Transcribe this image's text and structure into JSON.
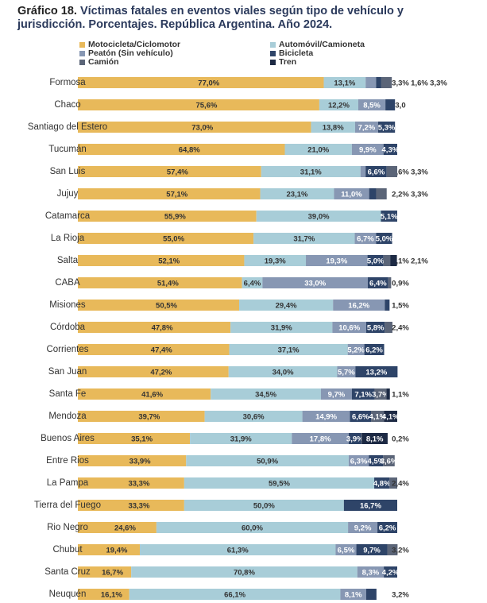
{
  "chart_data": {
    "type": "stacked-bar-horizontal",
    "title_label": "Gráfico 18.",
    "title": "Víctimas fatales en eventos viales según tipo de vehículo y jurisdicción. Porcentajes. República Argentina. Año 2024.",
    "categories": [
      "Formosa",
      "Chaco",
      "Santiago del Estero",
      "Tucumán",
      "San Luis",
      "Jujuy",
      "Catamarca",
      "La Rioja",
      "Salta",
      "CABA",
      "Misiones",
      "Córdoba",
      "Corrientes",
      "San Juan",
      "Santa Fe",
      "Mendoza",
      "Buenos Aires",
      "Entre Rios",
      "La Pampa",
      "Tierra del Fuego",
      "Rio Negro",
      "Chubut",
      "Santa Cruz",
      "Neuquén"
    ],
    "xlim": [
      0,
      100
    ],
    "series": [
      {
        "name": "Motocicleta/Ciclomotor",
        "color": "#e8b95a",
        "values": [
          77.0,
          75.6,
          73.0,
          64.8,
          57.4,
          57.1,
          55.9,
          55.0,
          52.1,
          51.4,
          50.5,
          47.8,
          47.4,
          47.2,
          41.6,
          39.7,
          35.1,
          33.9,
          33.3,
          33.3,
          24.6,
          19.4,
          16.7,
          16.1
        ],
        "value_labels": [
          "77,0%",
          "75,6%",
          "73,0%",
          "64,8%",
          "57,4%",
          "57,1%",
          "55,9%",
          "55,0%",
          "52,1%",
          "51,4%",
          "50,5%",
          "47,8%",
          "47,4%",
          "47,2%",
          "41,6%",
          "39,7%",
          "35,1%",
          "33,9%",
          "33,3%",
          "33,3%",
          "24,6%",
          "19,4%",
          "16,7%",
          "16,1%"
        ]
      },
      {
        "name": "Automóvil/Camioneta",
        "color": "#a8cdd8",
        "values": [
          13.1,
          12.2,
          13.8,
          21.0,
          31.1,
          23.1,
          39.0,
          31.7,
          19.3,
          6.4,
          29.4,
          31.9,
          37.1,
          34.0,
          34.5,
          30.6,
          31.9,
          50.9,
          59.5,
          50.0,
          60.0,
          61.3,
          70.8,
          66.1
        ],
        "value_labels": [
          "13,1%",
          "12,2%",
          "13,8%",
          "21,0%",
          "31,1%",
          "23,1%",
          "39,0%",
          "31,7%",
          "19,3%",
          "6,4%",
          "29,4%",
          "31,9%",
          "37,1%",
          "34,0%",
          "34,5%",
          "30,6%",
          "31,9%",
          "50,9%",
          "59,5%",
          "50,0%",
          "60,0%",
          "61,3%",
          "70,8%",
          "66,1%"
        ]
      },
      {
        "name": "Peatón (Sin vehículo)",
        "color": "#8797b3",
        "values": [
          3.3,
          8.5,
          7.2,
          9.9,
          1.6,
          11.0,
          null,
          6.7,
          19.3,
          33.0,
          16.2,
          10.6,
          5.2,
          5.7,
          9.7,
          14.9,
          17.8,
          6.3,
          null,
          null,
          9.2,
          6.5,
          8.3,
          8.1
        ],
        "value_labels": [
          "3,3%",
          "8,5%",
          "7,2%",
          "9,9%",
          "1,6%",
          "11,0%",
          null,
          "6,7%",
          "19,3%",
          "33,0%",
          "16,2%",
          "10,6%",
          "5,2%",
          "5,7%",
          "9,7%",
          "14,9%",
          "17,8%",
          "6,3%",
          null,
          null,
          "9,2%",
          "6,5%",
          "8,3%",
          "8,1%"
        ]
      },
      {
        "name": "Bicicleta",
        "color": "#2e4468",
        "values": [
          1.6,
          3.0,
          5.3,
          4.3,
          6.6,
          2.2,
          5.1,
          5.0,
          5.0,
          6.4,
          1.5,
          5.8,
          6.2,
          13.2,
          7.1,
          6.6,
          3.9,
          4.5,
          4.8,
          16.7,
          6.2,
          9.7,
          4.2,
          3.2
        ],
        "value_labels": [
          "1,6%",
          "3,0",
          "5,3%",
          "4,3%",
          "6,6%",
          "2,2%",
          "5,1%",
          "5,0%",
          "5,0%",
          "6,4%",
          "1,5%",
          "5,8%",
          "6,2%",
          "13,2%",
          "7,1%",
          "6,6%",
          "3,9%",
          "4,5%",
          "4,8%",
          "16,7%",
          "6,2%",
          "9,7%",
          "4,2%",
          "3,2%"
        ]
      },
      {
        "name": "Camión",
        "color": "#5b6578",
        "values": [
          3.3,
          null,
          null,
          null,
          3.3,
          3.3,
          null,
          null,
          2.1,
          0.9,
          null,
          2.4,
          null,
          null,
          3.7,
          4.1,
          0.2,
          3.6,
          2.4,
          null,
          null,
          3.2,
          null,
          null
        ],
        "value_labels": [
          "3,3%",
          null,
          null,
          null,
          "3,3%",
          "3,3%",
          null,
          null,
          "2,1%",
          "0,9%",
          null,
          "2,4%",
          null,
          null,
          "3,7%",
          "4,1%",
          "0,2%",
          "3,6%",
          "2,4%",
          null,
          null,
          "3,2%",
          null,
          null
        ]
      },
      {
        "name": "Tren",
        "color": "#1d2a44",
        "values": [
          null,
          null,
          null,
          null,
          null,
          null,
          null,
          null,
          2.1,
          null,
          null,
          null,
          null,
          null,
          1.1,
          4.1,
          8.1,
          null,
          null,
          null,
          null,
          null,
          null,
          null
        ],
        "value_labels": [
          null,
          null,
          null,
          null,
          null,
          null,
          null,
          null,
          "2,1%",
          null,
          null,
          null,
          null,
          null,
          "1,1%",
          "4,1%",
          "8,1%",
          null,
          null,
          null,
          null,
          null,
          null,
          null
        ]
      }
    ]
  }
}
